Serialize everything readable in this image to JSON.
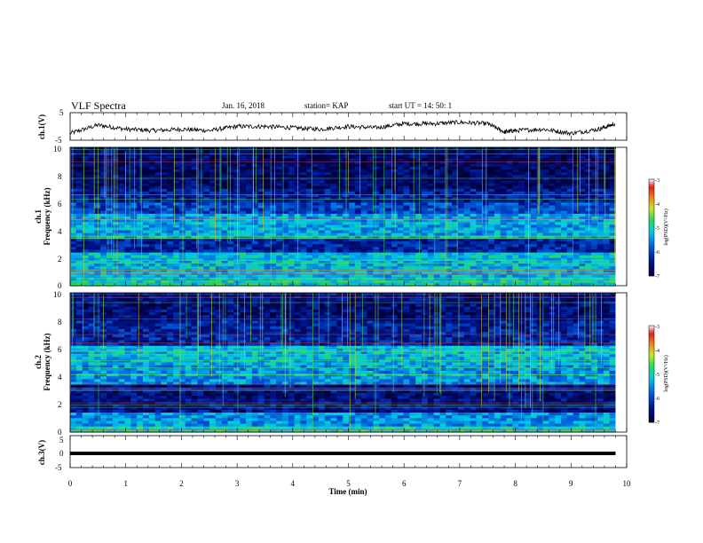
{
  "header": {
    "title": "VLF Spectra",
    "date": "Jan. 16, 2018",
    "station": "station= KAP",
    "start": "start UT = 14: 50: 1"
  },
  "chart_data": [
    {
      "type": "line",
      "name": "ch1-waveform",
      "ylabel": "ch.1(V)",
      "ylim": [
        -5,
        5
      ],
      "yticks": [
        "5",
        "-5"
      ],
      "xlim": [
        0,
        10
      ],
      "note_values": "approximate envelope, min vs value",
      "x": [
        0,
        0.5,
        1,
        1.5,
        2,
        2.5,
        3,
        3.5,
        4,
        4.5,
        5,
        5.5,
        6,
        6.5,
        7,
        7.5,
        7.8,
        8,
        8.5,
        9,
        9.5,
        9.8
      ],
      "y": [
        -2.5,
        0.5,
        -1,
        -1.5,
        -1,
        -1.5,
        0,
        0,
        -0.5,
        -1,
        0,
        -0.5,
        1,
        1,
        1.5,
        1,
        -2,
        -1.5,
        -1,
        -2.5,
        -1,
        1
      ]
    },
    {
      "type": "heatmap",
      "name": "ch1-spectrogram",
      "ylabel_top": "ch.1",
      "ylabel": "Frequency (kHz)",
      "ylim": [
        0,
        10
      ],
      "yticks": [
        "0",
        "2",
        "4",
        "6",
        "8",
        "10"
      ],
      "xlim": [
        0,
        10
      ],
      "colorbar": {
        "label": "log(PSD)(V²/Hz)",
        "range": [
          -7,
          -3
        ],
        "ticks": [
          "-3",
          "-4",
          "-5",
          "-6",
          "-7"
        ]
      },
      "bands": [
        {
          "f0": 0,
          "f1": 0.4,
          "level": -5.0
        },
        {
          "f0": 0.4,
          "f1": 2.0,
          "level": -5.3
        },
        {
          "f0": 2.0,
          "f1": 2.5,
          "level": -5.2
        },
        {
          "f0": 2.5,
          "f1": 3.5,
          "level": -6.3
        },
        {
          "f0": 3.5,
          "f1": 5.2,
          "level": -5.4
        },
        {
          "f0": 5.2,
          "f1": 6.0,
          "level": -6.0
        },
        {
          "f0": 6.0,
          "f1": 7.0,
          "level": -6.4
        },
        {
          "f0": 7.0,
          "f1": 10,
          "level": -6.7
        }
      ]
    },
    {
      "type": "heatmap",
      "name": "ch2-spectrogram",
      "ylabel_top": "ch.2",
      "ylabel": "Frequency (kHz)",
      "ylim": [
        0,
        10
      ],
      "yticks": [
        "0",
        "2",
        "4",
        "6",
        "8",
        "10"
      ],
      "xlim": [
        0,
        10
      ],
      "colorbar": {
        "label": "log(PSD)(V²/Hz)",
        "range": [
          -7,
          -3
        ],
        "ticks": [
          "-3",
          "-4",
          "-5",
          "-6",
          "-7"
        ]
      },
      "bands": [
        {
          "f0": 0,
          "f1": 0.5,
          "level": -5.0
        },
        {
          "f0": 0.5,
          "f1": 1.5,
          "level": -5.5
        },
        {
          "f0": 1.5,
          "f1": 2.5,
          "level": -6.5
        },
        {
          "f0": 2.5,
          "f1": 3.5,
          "level": -6.6
        },
        {
          "f0": 3.5,
          "f1": 4.8,
          "level": -5.5
        },
        {
          "f0": 4.8,
          "f1": 6.2,
          "level": -5.3
        },
        {
          "f0": 6.2,
          "f1": 8.0,
          "level": -6.3
        },
        {
          "f0": 8.0,
          "f1": 10,
          "level": -6.6
        }
      ]
    },
    {
      "type": "line",
      "name": "ch3-waveform",
      "ylabel": "ch.3(V)",
      "ylim": [
        -5,
        5
      ],
      "yticks": [
        "5",
        "0",
        "-5"
      ],
      "xlim": [
        0,
        10
      ],
      "x": [
        0,
        9.8
      ],
      "y": [
        0,
        0
      ]
    }
  ],
  "xaxis": {
    "label": "Time (min)",
    "ticks": [
      "0",
      "1",
      "2",
      "3",
      "4",
      "5",
      "6",
      "7",
      "8",
      "9",
      "10"
    ]
  }
}
